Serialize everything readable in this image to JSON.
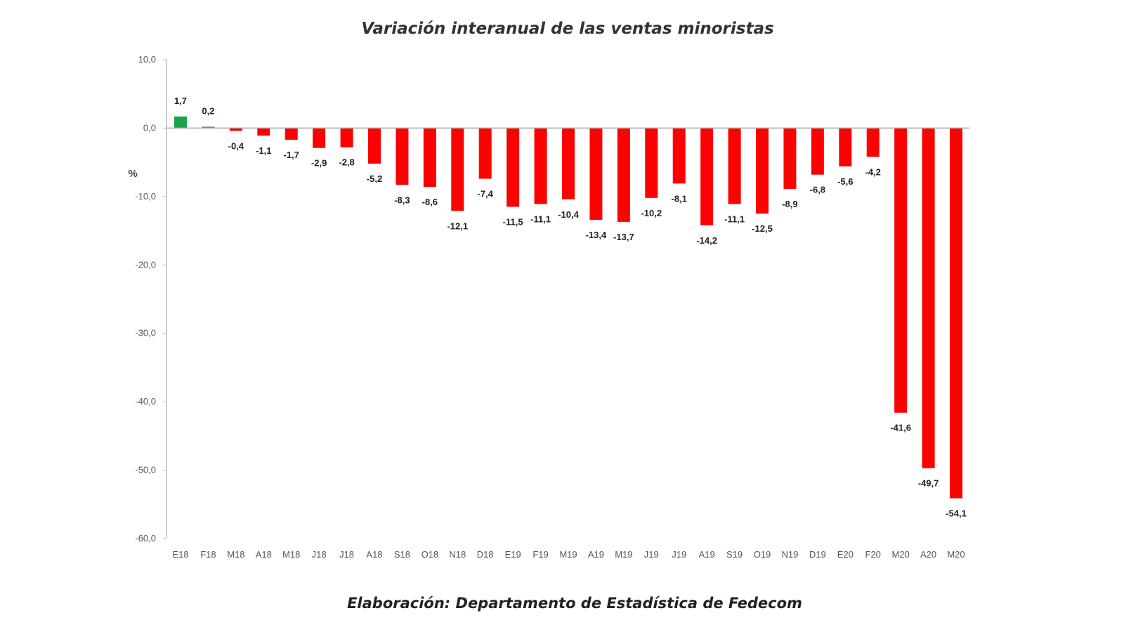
{
  "chart_data": {
    "type": "bar",
    "title": "Variación interanual de las ventas minoristas",
    "ylabel": "%",
    "xlabel": "",
    "ylim": [
      -60,
      10
    ],
    "yticks": [
      10,
      0,
      -10,
      -20,
      -30,
      -40,
      -50,
      -60
    ],
    "ytick_labels": [
      "10,0",
      "0,0",
      "-10,0",
      "-20,0",
      "-30,0",
      "-40,0",
      "-50,0",
      "-60,0"
    ],
    "grid": false,
    "legend": "none",
    "categories": [
      "E18",
      "F18",
      "M18",
      "A18",
      "M18",
      "J18",
      "J18",
      "A18",
      "S18",
      "O18",
      "N18",
      "D18",
      "E19",
      "F19",
      "M19",
      "A19",
      "M19",
      "J19",
      "J19",
      "A19",
      "S19",
      "O19",
      "N19",
      "D19",
      "E20",
      "F20",
      "M20",
      "A20",
      "M20"
    ],
    "values": [
      1.7,
      0.2,
      -0.4,
      -1.1,
      -1.7,
      -2.9,
      -2.8,
      -5.2,
      -8.3,
      -8.6,
      -12.1,
      -7.4,
      -11.5,
      -11.1,
      -10.4,
      -13.4,
      -13.7,
      -10.2,
      -8.1,
      -14.2,
      -11.1,
      -12.5,
      -8.9,
      -6.8,
      -5.6,
      -4.2,
      -41.6,
      -49.7,
      -54.1
    ],
    "data_labels": [
      "1,7",
      "0,2",
      "-0,4",
      "-1,1",
      "-1,7",
      "-2,9",
      "-2,8",
      "-5,2",
      "-8,3",
      "-8,6",
      "-12,1",
      "-7,4",
      "-11,5",
      "-11,1",
      "-10,4",
      "-13,4",
      "-13,7",
      "-10,2",
      "-8,1",
      "-14,2",
      "-11,1",
      "-12,5",
      "-8,9",
      "-6,8",
      "-5,6",
      "-4,2",
      "-41,6",
      "-49,7",
      "-54,1"
    ],
    "colors": {
      "positive": "#1aa34a",
      "negative": "#ff0000"
    },
    "footer": "Elaboración: Departamento de Estadística de Fedecom"
  }
}
